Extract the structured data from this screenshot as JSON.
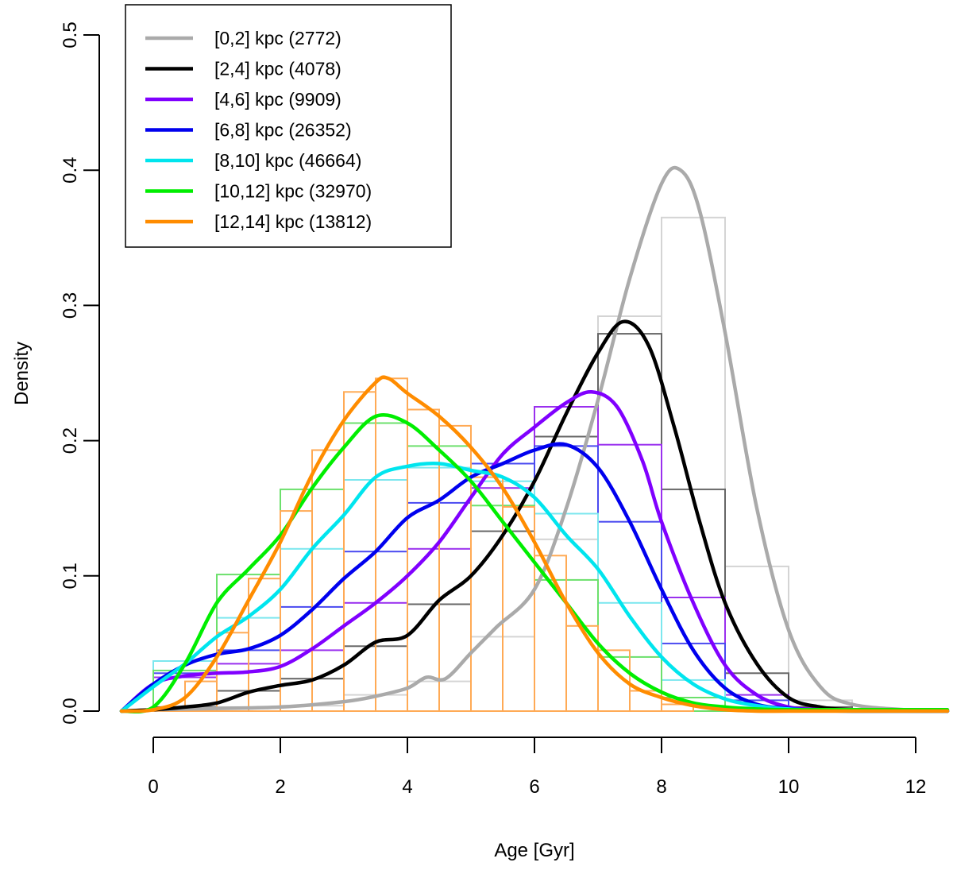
{
  "chart_data": {
    "type": "histogram+density",
    "xlabel": "Age [Gyr]",
    "ylabel": "Density",
    "xlim": [
      -0.5,
      12.5
    ],
    "ylim": [
      0,
      0.5
    ],
    "xticks": [
      0,
      2,
      4,
      6,
      8,
      10,
      12
    ],
    "yticks": [
      0.0,
      0.1,
      0.2,
      0.3,
      0.4,
      0.5
    ],
    "xtick_labels": [
      "0",
      "2",
      "4",
      "6",
      "8",
      "10",
      "12"
    ],
    "ytick_labels": [
      "0.0",
      "0.1",
      "0.2",
      "0.3",
      "0.4",
      "0.5"
    ],
    "legend_position": "top-left",
    "series": [
      {
        "name": "[0,2] kpc (2772)",
        "color": "#aaaaaa",
        "hist_color": "#d4d4d4",
        "bin_width": 1,
        "bins": [
          [
            0,
            1,
            0.002
          ],
          [
            1,
            2,
            0.003
          ],
          [
            2,
            3,
            0.004
          ],
          [
            3,
            4,
            0.012
          ],
          [
            4,
            5,
            0.022
          ],
          [
            5,
            6,
            0.055
          ],
          [
            6,
            7,
            0.127
          ],
          [
            7,
            8,
            0.292
          ],
          [
            8,
            9,
            0.365
          ],
          [
            9,
            10,
            0.107
          ],
          [
            10,
            11,
            0.008
          ]
        ],
        "density_x": [
          -0.5,
          0,
          1,
          2,
          3,
          3.5,
          4,
          4.3,
          4.6,
          5,
          5.4,
          6,
          6.5,
          7,
          7.5,
          8,
          8.3,
          8.6,
          9,
          9.5,
          10,
          10.5,
          11,
          12,
          12.5
        ],
        "density_y": [
          0,
          0.001,
          0.002,
          0.003,
          0.007,
          0.011,
          0.017,
          0.025,
          0.024,
          0.043,
          0.062,
          0.09,
          0.15,
          0.23,
          0.32,
          0.39,
          0.4,
          0.37,
          0.28,
          0.15,
          0.06,
          0.018,
          0.005,
          0.0005,
          0
        ]
      },
      {
        "name": "[2,4] kpc (4078)",
        "color": "#000000",
        "hist_color": "#666666",
        "bin_width": 1,
        "bins": [
          [
            0,
            1,
            0.003
          ],
          [
            1,
            2,
            0.015
          ],
          [
            2,
            3,
            0.024
          ],
          [
            3,
            4,
            0.048
          ],
          [
            4,
            5,
            0.079
          ],
          [
            5,
            6,
            0.133
          ],
          [
            6,
            7,
            0.203
          ],
          [
            7,
            8,
            0.279
          ],
          [
            8,
            9,
            0.164
          ],
          [
            9,
            10,
            0.028
          ],
          [
            10,
            11,
            0.003
          ]
        ],
        "density_x": [
          -0.5,
          0,
          0.5,
          1,
          1.5,
          2,
          2.5,
          3,
          3.5,
          4,
          4.5,
          5,
          5.5,
          6,
          6.5,
          7,
          7.4,
          7.8,
          8.2,
          8.6,
          9,
          9.5,
          10,
          10.5,
          11,
          12,
          12.5
        ],
        "density_y": [
          0,
          0.001,
          0.003,
          0.006,
          0.014,
          0.019,
          0.023,
          0.034,
          0.051,
          0.056,
          0.082,
          0.1,
          0.13,
          0.17,
          0.22,
          0.265,
          0.288,
          0.27,
          0.21,
          0.14,
          0.08,
          0.035,
          0.01,
          0.003,
          0.001,
          0,
          0
        ]
      },
      {
        "name": "[4,6] kpc (9909)",
        "color": "#8000ff",
        "hist_color": "#9a30ee",
        "bin_width": 1,
        "bins": [
          [
            0,
            1,
            0.025
          ],
          [
            1,
            2,
            0.035
          ],
          [
            2,
            3,
            0.045
          ],
          [
            3,
            4,
            0.08
          ],
          [
            4,
            5,
            0.12
          ],
          [
            5,
            6,
            0.165
          ],
          [
            6,
            7,
            0.225
          ],
          [
            7,
            8,
            0.197
          ],
          [
            8,
            9,
            0.084
          ],
          [
            9,
            10,
            0.012
          ]
        ],
        "density_x": [
          -0.5,
          0,
          0.5,
          1,
          1.5,
          2,
          2.5,
          3,
          3.5,
          4,
          4.5,
          5,
          5.5,
          6,
          6.5,
          6.9,
          7.3,
          7.7,
          8,
          8.5,
          9,
          9.5,
          10,
          10.5,
          11,
          12,
          12.5
        ],
        "density_y": [
          0,
          0.02,
          0.026,
          0.028,
          0.029,
          0.033,
          0.046,
          0.063,
          0.08,
          0.1,
          0.125,
          0.158,
          0.19,
          0.21,
          0.228,
          0.236,
          0.225,
          0.185,
          0.14,
          0.08,
          0.034,
          0.012,
          0.003,
          0.001,
          0,
          0,
          0
        ]
      },
      {
        "name": "[6,8] kpc (26352)",
        "color": "#0000ee",
        "hist_color": "#4a4af0",
        "bin_width": 1,
        "bins": [
          [
            0,
            1,
            0.028
          ],
          [
            1,
            2,
            0.045
          ],
          [
            2,
            3,
            0.077
          ],
          [
            3,
            4,
            0.118
          ],
          [
            4,
            5,
            0.154
          ],
          [
            5,
            6,
            0.183
          ],
          [
            6,
            7,
            0.196
          ],
          [
            7,
            8,
            0.14
          ],
          [
            8,
            9,
            0.05
          ],
          [
            9,
            10,
            0.008
          ]
        ],
        "density_x": [
          -0.5,
          0,
          0.5,
          1,
          1.5,
          2,
          2.5,
          3,
          3.5,
          4,
          4.5,
          5,
          5.5,
          6,
          6.5,
          7,
          7.5,
          8,
          8.5,
          9,
          9.5,
          10,
          10.5,
          11,
          12,
          12.5
        ],
        "density_y": [
          0,
          0.02,
          0.034,
          0.042,
          0.046,
          0.056,
          0.075,
          0.098,
          0.118,
          0.143,
          0.156,
          0.173,
          0.183,
          0.193,
          0.197,
          0.18,
          0.14,
          0.09,
          0.045,
          0.017,
          0.005,
          0.002,
          0.0005,
          0,
          0,
          0
        ]
      },
      {
        "name": "[8,10] kpc (46664)",
        "color": "#00e5ee",
        "hist_color": "#7ce7ee",
        "bin_width": 1,
        "bins": [
          [
            0,
            1,
            0.037
          ],
          [
            1,
            2,
            0.069
          ],
          [
            2,
            3,
            0.12
          ],
          [
            3,
            4,
            0.171
          ],
          [
            4,
            5,
            0.18
          ],
          [
            5,
            6,
            0.17
          ],
          [
            6,
            7,
            0.146
          ],
          [
            7,
            8,
            0.08
          ],
          [
            8,
            9,
            0.023
          ],
          [
            9,
            10,
            0.003
          ]
        ],
        "density_x": [
          -0.5,
          0,
          0.5,
          1,
          1.5,
          2,
          2.5,
          3,
          3.5,
          4,
          4.5,
          5,
          5.5,
          6,
          6.5,
          7,
          7.5,
          8,
          8.5,
          9,
          9.5,
          10,
          10.5,
          11,
          12,
          12.5
        ],
        "density_y": [
          0,
          0.018,
          0.035,
          0.055,
          0.07,
          0.09,
          0.12,
          0.145,
          0.173,
          0.181,
          0.183,
          0.178,
          0.173,
          0.158,
          0.13,
          0.105,
          0.07,
          0.04,
          0.02,
          0.009,
          0.004,
          0.0015,
          0.0005,
          0,
          0,
          0
        ]
      },
      {
        "name": "[10,12] kpc (32970)",
        "color": "#00ee00",
        "hist_color": "#6ce06c",
        "bin_width": 1,
        "bins": [
          [
            0,
            1,
            0.03
          ],
          [
            1,
            2,
            0.101
          ],
          [
            2,
            3,
            0.164
          ],
          [
            3,
            4,
            0.213
          ],
          [
            4,
            5,
            0.196
          ],
          [
            5,
            6,
            0.152
          ],
          [
            6,
            7,
            0.097
          ],
          [
            7,
            8,
            0.04
          ],
          [
            8,
            9,
            0.01
          ],
          [
            9,
            10,
            0.002
          ]
        ],
        "density_x": [
          -0.5,
          0,
          0.5,
          1,
          1.5,
          2,
          2.5,
          3,
          3.5,
          4,
          4.5,
          5,
          5.5,
          6,
          6.5,
          7,
          7.5,
          8,
          8.5,
          9,
          9.5,
          10,
          10.5,
          11,
          12,
          12.5
        ],
        "density_y": [
          0,
          0.003,
          0.035,
          0.08,
          0.105,
          0.13,
          0.165,
          0.195,
          0.218,
          0.213,
          0.193,
          0.17,
          0.14,
          0.11,
          0.08,
          0.05,
          0.028,
          0.014,
          0.006,
          0.003,
          0.0015,
          0.001,
          0.001,
          0.001,
          0.001,
          0.001
        ]
      },
      {
        "name": "[12,14] kpc (13812)",
        "color": "#ff8c00",
        "hist_color": "#ffaa55",
        "bin_width": 0.5,
        "bins": [
          [
            0,
            0.5,
            0.002
          ],
          [
            0.5,
            1,
            0.022
          ],
          [
            1,
            1.5,
            0.058
          ],
          [
            1.5,
            2,
            0.098
          ],
          [
            2,
            2.5,
            0.148
          ],
          [
            2.5,
            3,
            0.193
          ],
          [
            3,
            3.5,
            0.236
          ],
          [
            3.5,
            4,
            0.246
          ],
          [
            4,
            4.5,
            0.223
          ],
          [
            4.5,
            5,
            0.211
          ],
          [
            5,
            5.5,
            0.173
          ],
          [
            5.5,
            6,
            0.151
          ],
          [
            6,
            6.5,
            0.115
          ],
          [
            6.5,
            7,
            0.063
          ],
          [
            7,
            7.5,
            0.045
          ],
          [
            7.5,
            8,
            0.015
          ],
          [
            8,
            8.5,
            0.005
          ]
        ],
        "density_x": [
          -0.5,
          0,
          0.5,
          1,
          1.5,
          2,
          2.5,
          3,
          3.5,
          3.7,
          4,
          4.5,
          5,
          5.5,
          6,
          6.5,
          7,
          7.5,
          8,
          8.5,
          9,
          9.5,
          10,
          11,
          12,
          12.5
        ],
        "density_y": [
          0,
          0.001,
          0.01,
          0.04,
          0.082,
          0.125,
          0.175,
          0.215,
          0.243,
          0.246,
          0.235,
          0.218,
          0.195,
          0.165,
          0.125,
          0.08,
          0.043,
          0.02,
          0.01,
          0.004,
          0.001,
          0,
          0,
          0,
          0,
          0
        ]
      }
    ]
  }
}
